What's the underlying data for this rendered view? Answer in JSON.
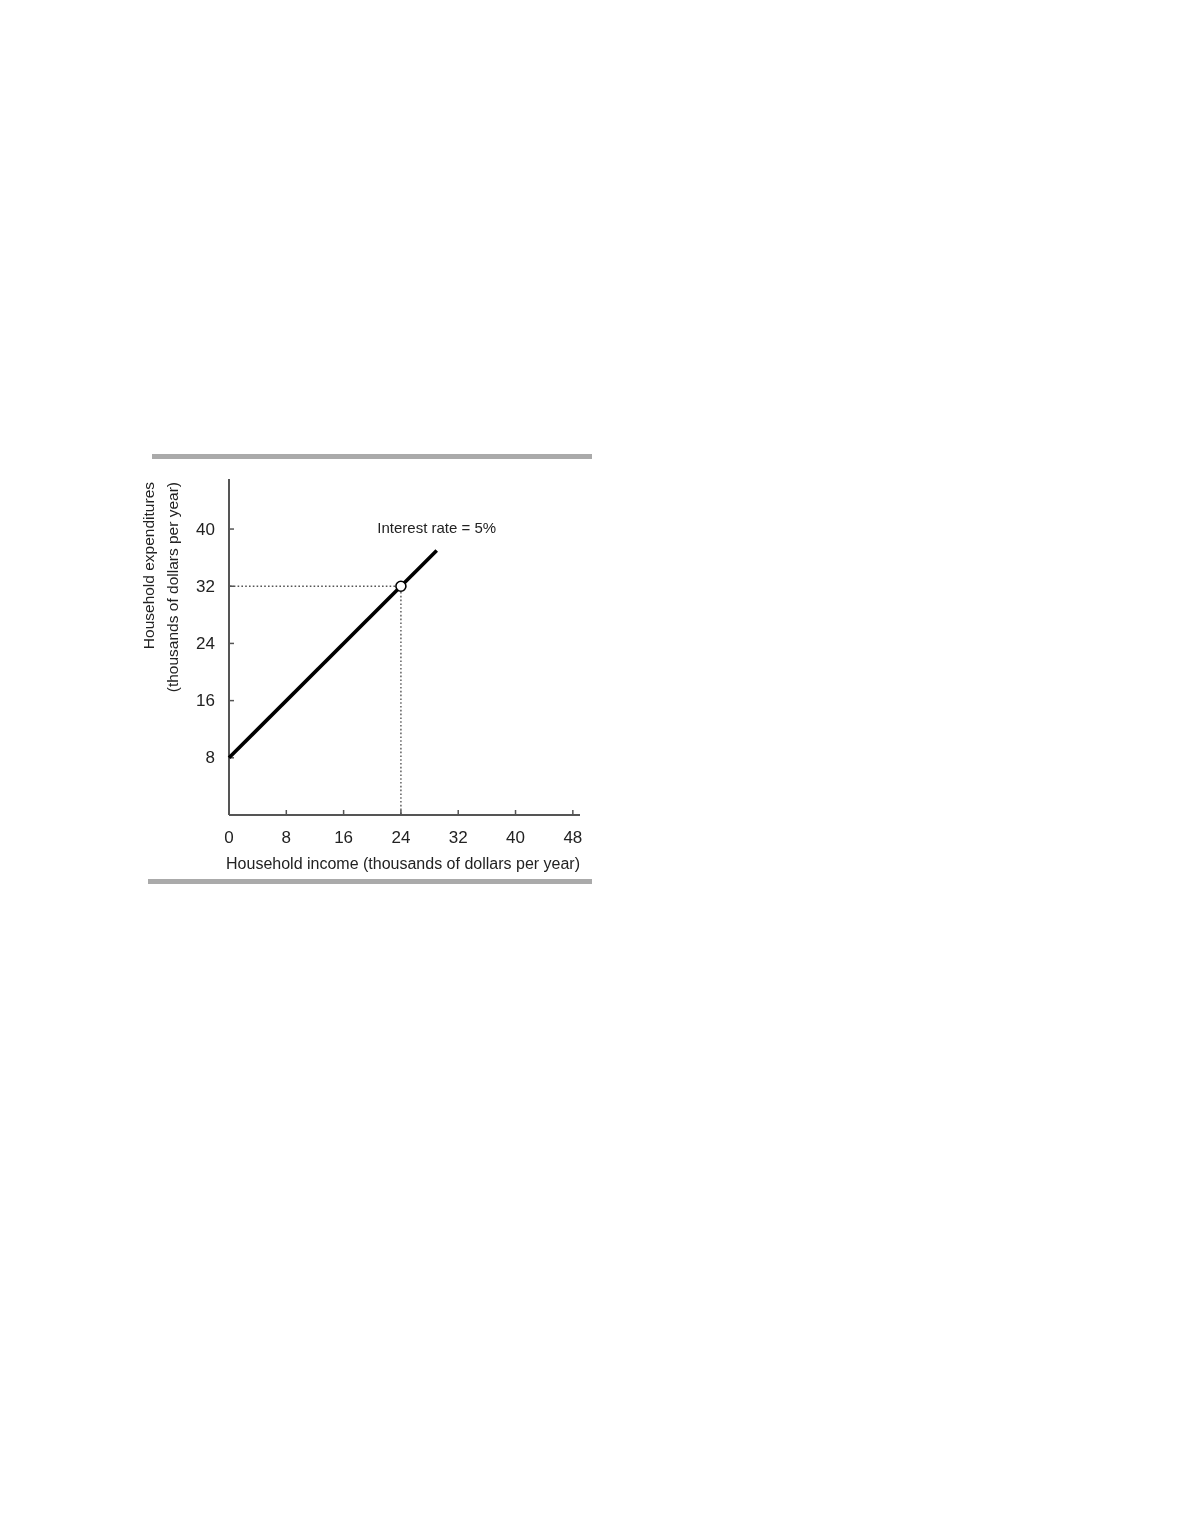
{
  "chart_data": {
    "type": "line",
    "xlabel": "Household income (thousands of dollars per year)",
    "ylabel": "Household expenditures\n(thousands of dollars per year)",
    "annotations": [
      "Interest rate = 5%"
    ],
    "xlim": [
      0,
      49
    ],
    "ylim": [
      0,
      47
    ],
    "xticks": [
      0,
      8,
      16,
      24,
      32,
      40,
      48
    ],
    "yticks": [
      8,
      16,
      24,
      32,
      40
    ],
    "grid": false,
    "ref_lines": [
      {
        "axis": "y",
        "value": 32,
        "color": "#555555",
        "line_style": "dotted"
      },
      {
        "axis": "x",
        "value": 24,
        "color": "#555555",
        "line_style": "dotted"
      }
    ],
    "series": [
      {
        "color": "#000000",
        "x": [
          0,
          29
        ],
        "values": [
          8,
          37
        ],
        "line_style": "solid",
        "marker": "none"
      },
      {
        "type": "scatter",
        "color": "#000000",
        "x": [
          24
        ],
        "values": [
          32
        ],
        "marker": "circle"
      }
    ]
  }
}
